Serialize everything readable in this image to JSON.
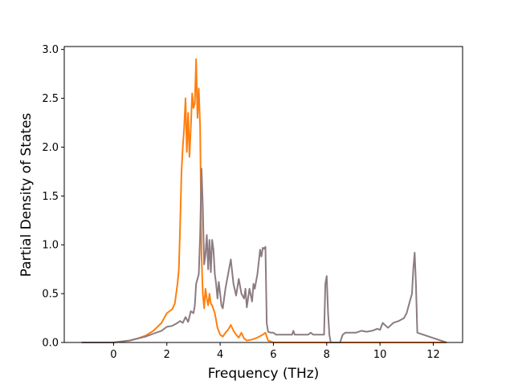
{
  "chart_data": {
    "type": "line",
    "title": "",
    "xlabel": "Frequency (THz)",
    "ylabel": "Partial Density of States",
    "xlim": [
      -1.85,
      13.1
    ],
    "ylim": [
      0,
      3.03
    ],
    "xticks": [
      0,
      2,
      4,
      6,
      8,
      10,
      12
    ],
    "yticks": [
      0.0,
      0.5,
      1.0,
      1.5,
      2.0,
      2.5,
      3.0
    ],
    "xtick_labels": [
      "0",
      "2",
      "4",
      "6",
      "8",
      "10",
      "12"
    ],
    "ytick_labels": [
      "0.0",
      "0.5",
      "1.0",
      "1.5",
      "2.0",
      "2.5",
      "3.0"
    ],
    "grid": false,
    "legend": null,
    "series": [
      {
        "color": "#ff7f0e",
        "x": [
          -1.2,
          0.0,
          0.3,
          0.6,
          0.9,
          1.2,
          1.5,
          1.8,
          2.0,
          2.2,
          2.3,
          2.4,
          2.45,
          2.5,
          2.55,
          2.6,
          2.65,
          2.7,
          2.75,
          2.8,
          2.85,
          2.9,
          2.95,
          3.0,
          3.05,
          3.1,
          3.15,
          3.2,
          3.25,
          3.3,
          3.35,
          3.4,
          3.45,
          3.5,
          3.55,
          3.6,
          3.65,
          3.7,
          3.8,
          3.9,
          4.0,
          4.1,
          4.2,
          4.3,
          4.4,
          4.5,
          4.6,
          4.7,
          4.8,
          4.9,
          5.0,
          5.2,
          5.4,
          5.6,
          5.7,
          5.8,
          6.0,
          7.0,
          8.0,
          9.0,
          10.0,
          11.0,
          11.2,
          11.4,
          12.5
        ],
        "y": [
          0.0,
          0.0,
          0.01,
          0.02,
          0.04,
          0.07,
          0.12,
          0.2,
          0.3,
          0.34,
          0.4,
          0.6,
          0.75,
          1.2,
          1.75,
          2.0,
          2.2,
          2.5,
          1.95,
          2.35,
          1.9,
          2.2,
          2.55,
          2.4,
          2.45,
          2.9,
          2.3,
          2.6,
          2.2,
          0.9,
          0.5,
          0.35,
          0.55,
          0.45,
          0.38,
          0.5,
          0.4,
          0.38,
          0.3,
          0.15,
          0.08,
          0.06,
          0.1,
          0.13,
          0.18,
          0.12,
          0.08,
          0.05,
          0.1,
          0.04,
          0.02,
          0.03,
          0.05,
          0.08,
          0.1,
          0.02,
          0.0,
          0.0,
          0.0,
          0.0,
          0.0,
          0.0,
          0.0,
          0.0,
          0.0
        ]
      },
      {
        "color": "#8c7b82",
        "x": [
          -1.2,
          0.0,
          0.3,
          0.6,
          0.9,
          1.2,
          1.5,
          1.8,
          2.0,
          2.2,
          2.4,
          2.5,
          2.6,
          2.7,
          2.8,
          2.9,
          3.0,
          3.05,
          3.1,
          3.15,
          3.2,
          3.25,
          3.3,
          3.35,
          3.4,
          3.45,
          3.5,
          3.55,
          3.6,
          3.65,
          3.7,
          3.75,
          3.8,
          3.85,
          3.9,
          3.95,
          4.0,
          4.05,
          4.1,
          4.2,
          4.3,
          4.4,
          4.5,
          4.6,
          4.7,
          4.8,
          4.9,
          4.95,
          5.0,
          5.1,
          5.2,
          5.25,
          5.3,
          5.4,
          5.5,
          5.55,
          5.6,
          5.65,
          5.7,
          5.75,
          5.8,
          5.9,
          6.0,
          6.1,
          6.5,
          6.7,
          6.75,
          6.8,
          7.0,
          7.3,
          7.4,
          7.5,
          7.8,
          7.9,
          7.95,
          8.0,
          8.05,
          8.1,
          8.15,
          8.5,
          8.6,
          8.7,
          8.9,
          9.1,
          9.3,
          9.5,
          9.7,
          9.9,
          10.0,
          10.1,
          10.3,
          10.5,
          10.7,
          10.9,
          11.0,
          11.1,
          11.2,
          11.25,
          11.3,
          11.35,
          11.4,
          12.5
        ],
        "y": [
          0.0,
          0.0,
          0.01,
          0.02,
          0.04,
          0.06,
          0.09,
          0.12,
          0.16,
          0.17,
          0.2,
          0.22,
          0.2,
          0.26,
          0.21,
          0.32,
          0.3,
          0.38,
          0.6,
          0.65,
          0.7,
          1.1,
          1.78,
          1.4,
          0.8,
          0.9,
          1.1,
          0.75,
          1.05,
          0.72,
          1.05,
          0.95,
          0.7,
          0.6,
          0.45,
          0.62,
          0.5,
          0.38,
          0.35,
          0.55,
          0.7,
          0.85,
          0.6,
          0.48,
          0.65,
          0.5,
          0.45,
          0.55,
          0.36,
          0.55,
          0.42,
          0.6,
          0.55,
          0.7,
          0.95,
          0.88,
          0.97,
          0.96,
          0.98,
          0.2,
          0.11,
          0.1,
          0.1,
          0.08,
          0.08,
          0.08,
          0.12,
          0.08,
          0.08,
          0.08,
          0.1,
          0.08,
          0.08,
          0.08,
          0.6,
          0.68,
          0.3,
          0.08,
          0.0,
          0.0,
          0.08,
          0.1,
          0.1,
          0.1,
          0.12,
          0.11,
          0.12,
          0.14,
          0.13,
          0.2,
          0.15,
          0.2,
          0.22,
          0.25,
          0.3,
          0.4,
          0.5,
          0.75,
          0.92,
          0.6,
          0.1,
          0.0
        ]
      }
    ]
  }
}
